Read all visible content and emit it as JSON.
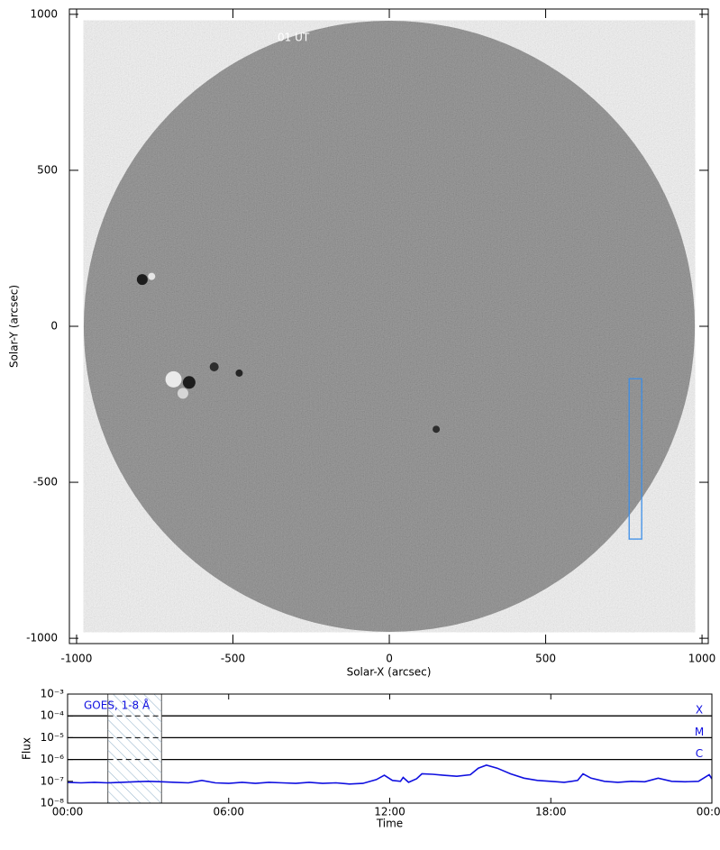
{
  "chart_data": [
    {
      "type": "image",
      "xlabel": "Solar-X (arcsec)",
      "ylabel": "Solar-Y (arcsec)",
      "annotation": "01 UT",
      "xlim": [
        -1023,
        1020
      ],
      "ylim": [
        -1017,
        1017
      ],
      "xticks": [
        -1000,
        -500,
        0,
        500,
        1000
      ],
      "yticks": [
        -1000,
        -500,
        0,
        500,
        1000
      ],
      "disk_radius": 977,
      "box": {
        "x": [
          767,
          807
        ],
        "y": [
          -682,
          -168
        ],
        "color": "#3b8ee8"
      }
    },
    {
      "type": "line",
      "xlabel": "Time",
      "ylabel": "Flux",
      "log_y": true,
      "xlim": [
        0,
        24
      ],
      "ylim": [
        1e-08,
        0.001
      ],
      "xticks": [
        {
          "value": 0,
          "label": "00:00"
        },
        {
          "value": 6,
          "label": "06:00"
        },
        {
          "value": 12,
          "label": "12:00"
        },
        {
          "value": 18,
          "label": "18:00"
        },
        {
          "value": 24,
          "label": "00:00"
        }
      ],
      "yticks": [
        {
          "value": 1e-08,
          "label": "10⁻⁸"
        },
        {
          "value": 1e-07,
          "label": "10⁻⁷"
        },
        {
          "value": 1e-06,
          "label": "10⁻⁶"
        },
        {
          "value": 1e-05,
          "label": "10⁻⁵"
        },
        {
          "value": 0.0001,
          "label": "10⁻⁴"
        },
        {
          "value": 0.001,
          "label": "10⁻³"
        }
      ],
      "class_levels": [
        {
          "label": "X",
          "value": 0.0001
        },
        {
          "label": "M",
          "value": 1e-05
        },
        {
          "label": "C",
          "value": 1e-06
        }
      ],
      "shaded": [
        1.5,
        3.5
      ],
      "series": [
        {
          "name": "GOES, 1-8 Å",
          "color": "#1010e0",
          "x": [
            0,
            0.5,
            1,
            1.5,
            2,
            2.5,
            3,
            3.5,
            4,
            4.5,
            5,
            5.5,
            6,
            6.5,
            7,
            7.5,
            8,
            8.5,
            9,
            9.5,
            10,
            10.5,
            11,
            11.5,
            11.8,
            12.1,
            12.4,
            12.5,
            12.7,
            13,
            13.2,
            13.6,
            14,
            14.5,
            15,
            15.3,
            15.6,
            16,
            16.5,
            17,
            17.5,
            18,
            18.5,
            19,
            19.2,
            19.5,
            20,
            20.5,
            21,
            21.5,
            22,
            22.5,
            23,
            23.5,
            23.9,
            24
          ],
          "values": [
            9e-08,
            8.5e-08,
            9e-08,
            8.5e-08,
            9e-08,
            9.5e-08,
            1e-07,
            9.5e-08,
            9e-08,
            8.5e-08,
            1.1e-07,
            8.5e-08,
            8e-08,
            9e-08,
            8e-08,
            9e-08,
            8.5e-08,
            8e-08,
            9e-08,
            8e-08,
            8.5e-08,
            7.5e-08,
            8e-08,
            1.2e-07,
            1.9e-07,
            1.1e-07,
            1e-07,
            1.5e-07,
            9e-08,
            1.3e-07,
            2.2e-07,
            2.1e-07,
            1.9e-07,
            1.7e-07,
            2e-07,
            4e-07,
            5.5e-07,
            4e-07,
            2.2e-07,
            1.4e-07,
            1.1e-07,
            1e-07,
            9e-08,
            1.1e-07,
            2.2e-07,
            1.4e-07,
            1e-07,
            9e-08,
            1e-07,
            9.5e-08,
            1.4e-07,
            1e-07,
            9.5e-08,
            1e-07,
            2e-07,
            1.3e-07
          ]
        }
      ]
    }
  ]
}
